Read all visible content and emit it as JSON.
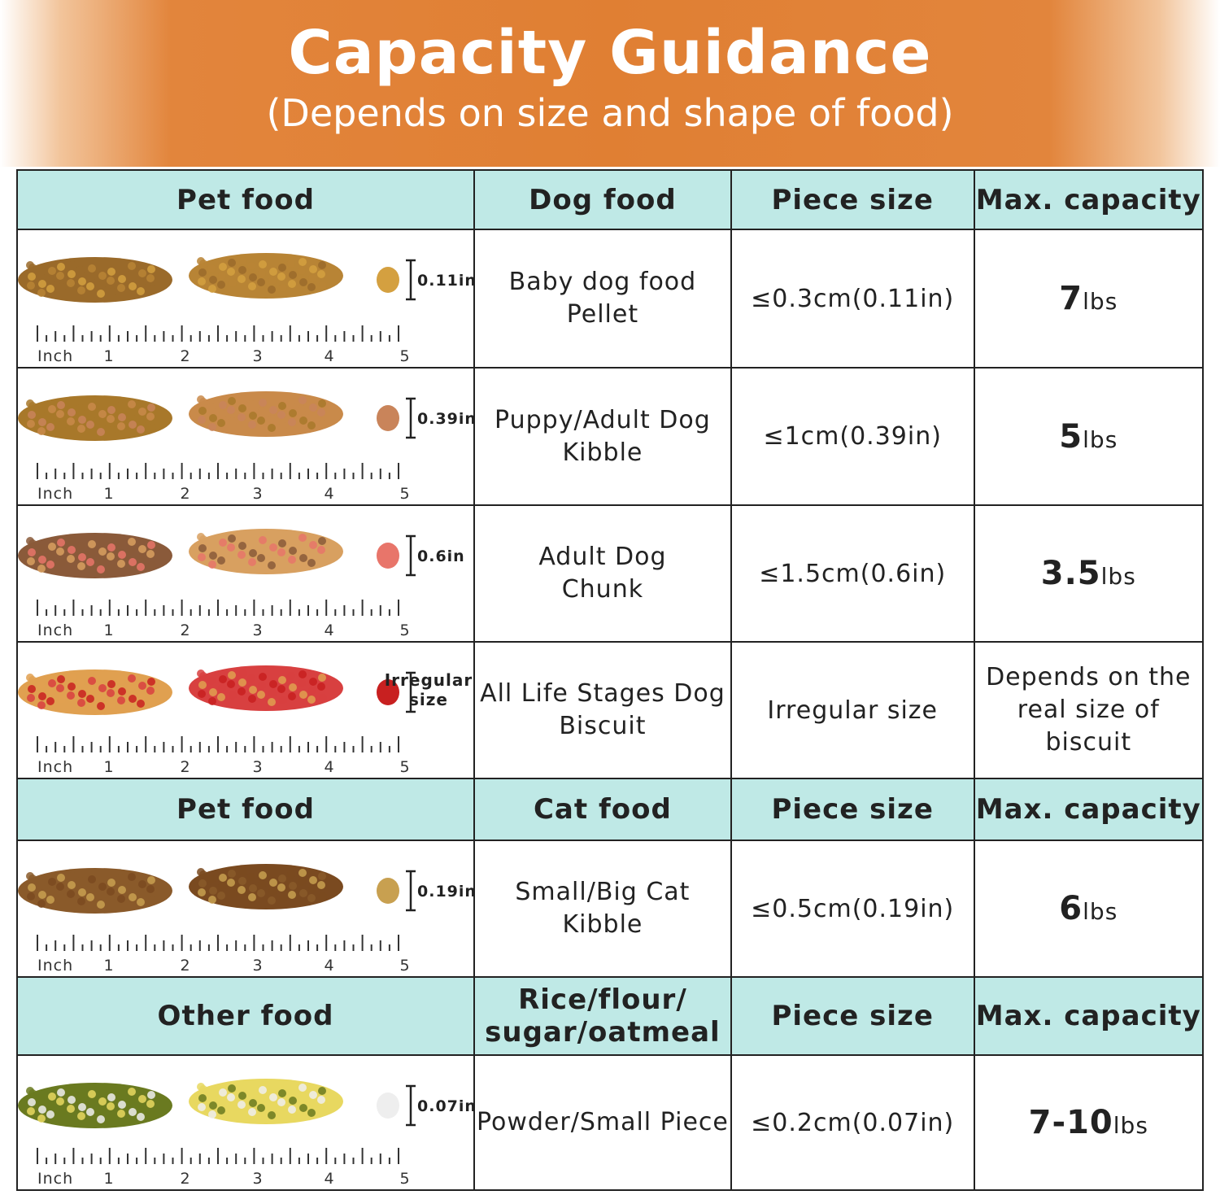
{
  "banner": {
    "title": "Capacity Guidance",
    "subtitle": "(Depends on size and shape of food)"
  },
  "colors": {
    "banner": "#e07f33",
    "header": "#bfe9e6"
  },
  "ruler": {
    "label": "Inch",
    "numbers": [
      "1",
      "2",
      "3",
      "4",
      "5"
    ]
  },
  "sections": [
    {
      "header": [
        "Pet food",
        "Dog food",
        "Piece size",
        "Max. capacity"
      ],
      "rows": [
        {
          "measure": "0.11in",
          "food": [
            "Baby dog food",
            "Pellet"
          ],
          "size": "≤0.3cm(0.11in)",
          "cap": "7",
          "unit": "lbs",
          "colors": [
            "#9a6a2a",
            "#b88435",
            "#d4a040"
          ]
        },
        {
          "measure": "0.39in",
          "food": [
            "Puppy/Adult Dog",
            "Kibble"
          ],
          "size": "≤1cm(0.39in)",
          "cap": "5",
          "unit": "lbs",
          "colors": [
            "#a8782a",
            "#c98a4a",
            "#c9845a"
          ]
        },
        {
          "measure": "0.6in",
          "food": [
            "Adult Dog",
            "Chunk"
          ],
          "size": "≤1.5cm(0.6in)",
          "cap": "3.5",
          "unit": "lbs",
          "colors": [
            "#8a5a3a",
            "#d8a060",
            "#e8756a"
          ]
        },
        {
          "measure": "Irregular size",
          "food": [
            "All Life Stages Dog",
            "Biscuit"
          ],
          "size": "Irregular size",
          "cap_text": [
            "Depends on the",
            "real size of biscuit"
          ],
          "colors": [
            "#e0a050",
            "#d84040",
            "#c82020"
          ]
        }
      ]
    },
    {
      "header": [
        "Pet food",
        "Cat food",
        "Piece size",
        "Max. capacity"
      ],
      "rows": [
        {
          "measure": "0.19in",
          "food": [
            "Small/Big Cat",
            "Kibble"
          ],
          "size": "≤0.5cm(0.19in)",
          "cap": "6",
          "unit": "lbs",
          "colors": [
            "#8a5a2a",
            "#7a4a20",
            "#c8a050"
          ]
        }
      ]
    },
    {
      "header": [
        "Other food",
        "Rice/flour/ sugar/oatmeal",
        "Piece size",
        "Max. capacity"
      ],
      "rows": [
        {
          "measure": "0.07in",
          "food": [
            "Powder/Small Piece"
          ],
          "size": "≤0.2cm(0.07in)",
          "cap": "7-10",
          "unit": "lbs",
          "colors": [
            "#6a7a20",
            "#e8d860",
            "#eeeeee"
          ]
        }
      ]
    }
  ]
}
